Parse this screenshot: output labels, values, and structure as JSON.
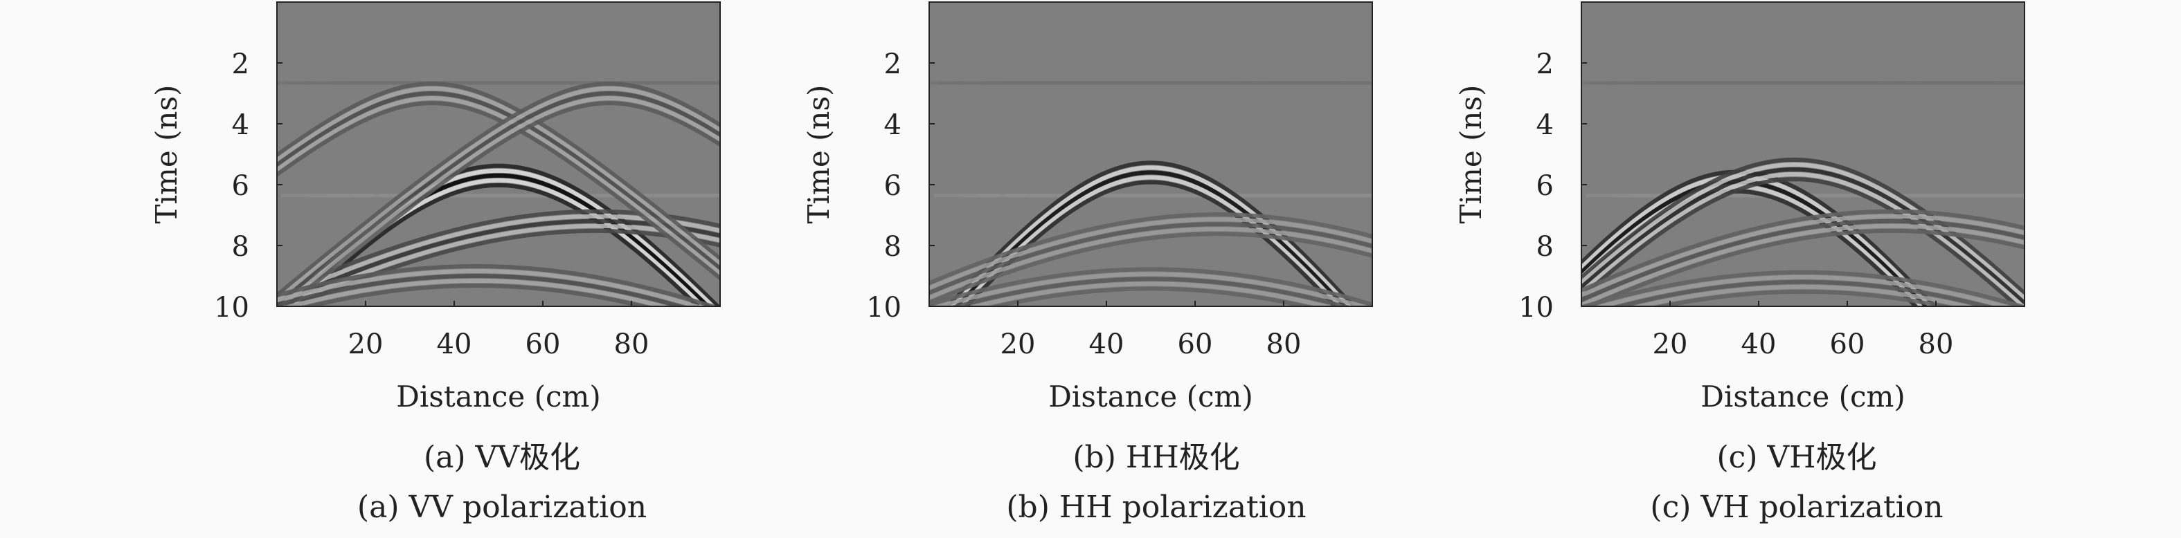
{
  "figure": {
    "panels": [
      {
        "caption_cn": "(a) VV极化",
        "caption_en": "(a) VV polarization",
        "chart_data": {
          "type": "heatmap",
          "title": "",
          "xlabel": "Distance (cm)",
          "ylabel": "Time (ns)",
          "xlim": [
            0,
            100
          ],
          "ylim": [
            0,
            10
          ],
          "y_inverted": true,
          "xticks": [
            20,
            40,
            60,
            80
          ],
          "yticks": [
            2,
            4,
            6,
            8,
            10
          ],
          "colormap": "gray",
          "background_color": "#7f7f7f",
          "hyperbolas": [
            {
              "apex_x": 50,
              "apex_t": 5.7,
              "spread": 0.055,
              "amplitude": 1.0
            },
            {
              "apex_x": 72,
              "apex_t": 7.2,
              "spread": 0.03,
              "amplitude": 0.6
            },
            {
              "apex_x": 35,
              "apex_t": 3.0,
              "spread": 0.04,
              "amplitude": 0.4
            },
            {
              "apex_x": 75,
              "apex_t": 3.0,
              "spread": 0.04,
              "amplitude": 0.4
            },
            {
              "apex_x": 45,
              "apex_t": 9.0,
              "spread": 0.03,
              "amplitude": 0.4
            }
          ]
        }
      },
      {
        "caption_cn": "(b) HH极化",
        "caption_en": "(b) HH polarization",
        "chart_data": {
          "type": "heatmap",
          "title": "",
          "xlabel": "Distance (cm)",
          "ylabel": "Time (ns)",
          "xlim": [
            0,
            100
          ],
          "ylim": [
            0,
            10
          ],
          "y_inverted": true,
          "xticks": [
            20,
            40,
            60,
            80
          ],
          "yticks": [
            2,
            4,
            6,
            8,
            10
          ],
          "colormap": "gray",
          "background_color": "#7f7f7f",
          "hyperbolas": [
            {
              "apex_x": 50,
              "apex_t": 5.6,
              "spread": 0.06,
              "amplitude": 0.9
            },
            {
              "apex_x": 65,
              "apex_t": 7.3,
              "spread": 0.03,
              "amplitude": 0.3
            },
            {
              "apex_x": 50,
              "apex_t": 9.1,
              "spread": 0.03,
              "amplitude": 0.3
            }
          ]
        }
      },
      {
        "caption_cn": "(c) VH极化",
        "caption_en": "(c) VH polarization",
        "chart_data": {
          "type": "heatmap",
          "title": "",
          "xlabel": "Distance (cm)",
          "ylabel": "Time (ns)",
          "xlim": [
            0,
            100
          ],
          "ylim": [
            0,
            10
          ],
          "y_inverted": true,
          "xticks": [
            20,
            40,
            60,
            80
          ],
          "yticks": [
            2,
            4,
            6,
            8,
            10
          ],
          "colormap": "gray",
          "background_color": "#7f7f7f",
          "hyperbolas": [
            {
              "apex_x": 35,
              "apex_t": 5.9,
              "spread": 0.06,
              "amplitude": 0.9
            },
            {
              "apex_x": 48,
              "apex_t": 5.5,
              "spread": 0.05,
              "amplitude": 0.7
            },
            {
              "apex_x": 70,
              "apex_t": 7.2,
              "spread": 0.03,
              "amplitude": 0.35
            },
            {
              "apex_x": 50,
              "apex_t": 9.2,
              "spread": 0.03,
              "amplitude": 0.3
            }
          ]
        }
      }
    ]
  }
}
